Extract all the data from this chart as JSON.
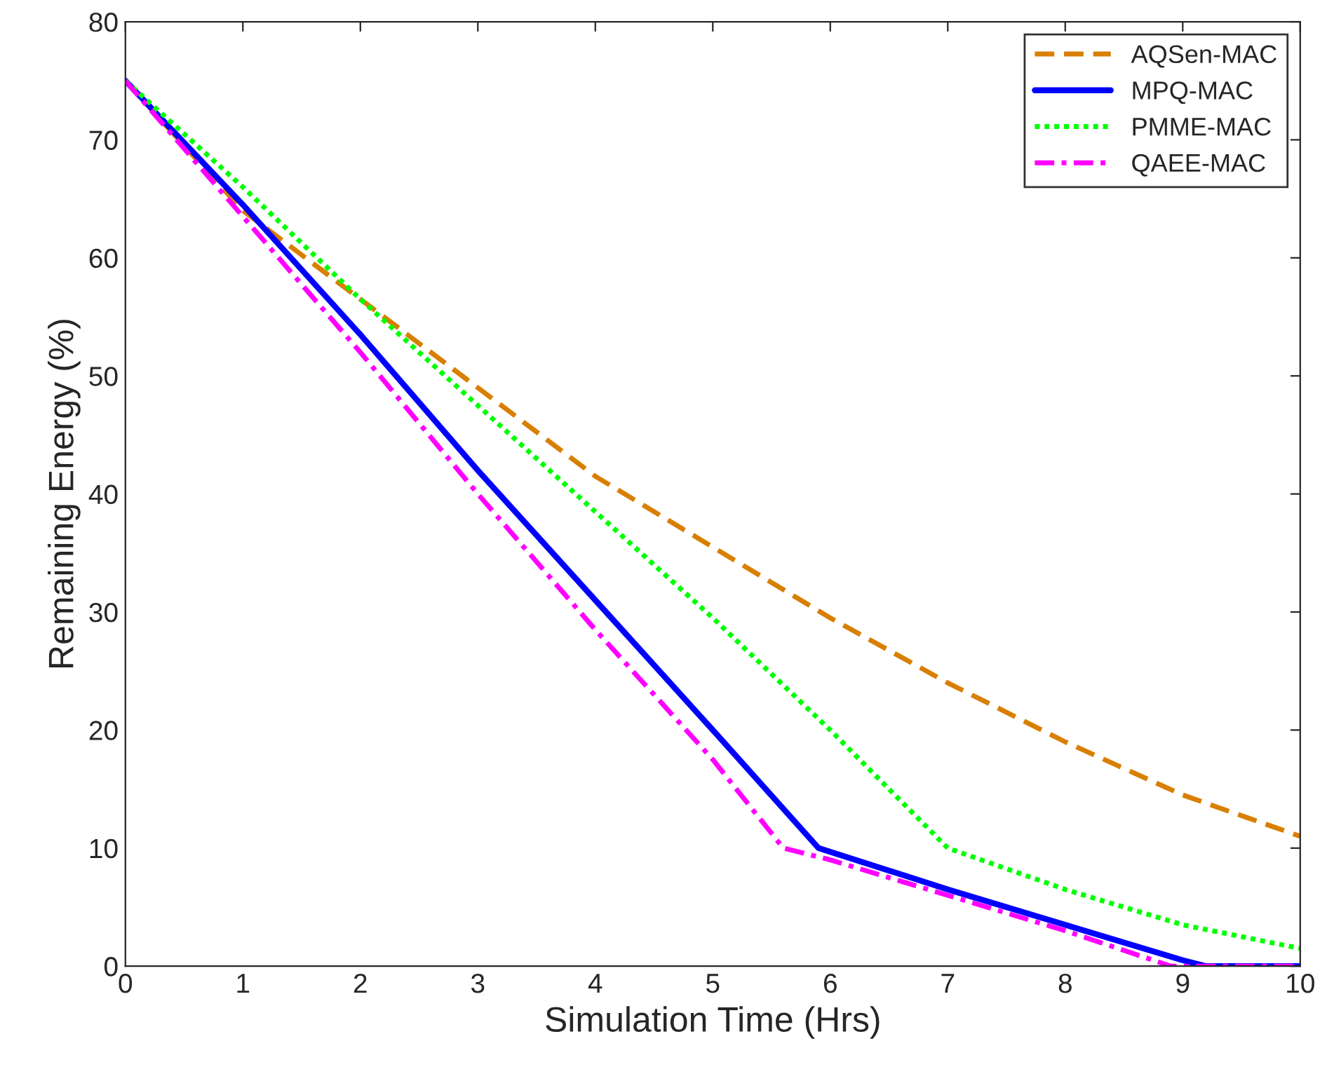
{
  "chart_data": {
    "type": "line",
    "xlabel": "Simulation Time (Hrs)",
    "ylabel": "Remaining Energy (%)",
    "xlim": [
      0,
      10
    ],
    "ylim": [
      0,
      80
    ],
    "xticks": [
      0,
      1,
      2,
      3,
      4,
      5,
      6,
      7,
      8,
      9,
      10
    ],
    "yticks": [
      0,
      10,
      20,
      30,
      40,
      50,
      60,
      70,
      80
    ],
    "grid": false,
    "legend": "top right",
    "marker": "none",
    "series": [
      {
        "name": "AQSen-MAC",
        "color": "#d97f00",
        "line_style": "dashed",
        "x": [
          0,
          1,
          2,
          3,
          4,
          5,
          6,
          7,
          8,
          9,
          10
        ],
        "values": [
          75,
          64,
          56.5,
          49,
          41.5,
          35.5,
          29.5,
          24,
          19,
          14.5,
          11
        ]
      },
      {
        "name": "MPQ-MAC",
        "color": "#0000ff",
        "line_style": "solid",
        "x": [
          0,
          1,
          2,
          3,
          4,
          5,
          5.9,
          7,
          8,
          9,
          9.2,
          10
        ],
        "values": [
          75,
          64.5,
          53.5,
          42,
          31,
          20,
          10,
          6.5,
          3.5,
          0.5,
          0,
          0
        ]
      },
      {
        "name": "PMME-MAC",
        "color": "#00ff00",
        "line_style": "dotted",
        "x": [
          0,
          1,
          2,
          3,
          4,
          5,
          6,
          7,
          8,
          9,
          10
        ],
        "values": [
          75,
          66,
          56.5,
          47.5,
          38.5,
          29.5,
          20,
          10,
          6.5,
          3.5,
          1.5
        ]
      },
      {
        "name": "QAEE-MAC",
        "color": "#ff00ff",
        "line_style": "dashdot",
        "x": [
          0,
          1,
          2,
          3,
          4,
          5,
          5.6,
          6,
          7,
          8,
          8.9,
          10
        ],
        "values": [
          75,
          63.5,
          52,
          40,
          28.5,
          17.5,
          10,
          9,
          6,
          3,
          0,
          0
        ]
      }
    ]
  }
}
